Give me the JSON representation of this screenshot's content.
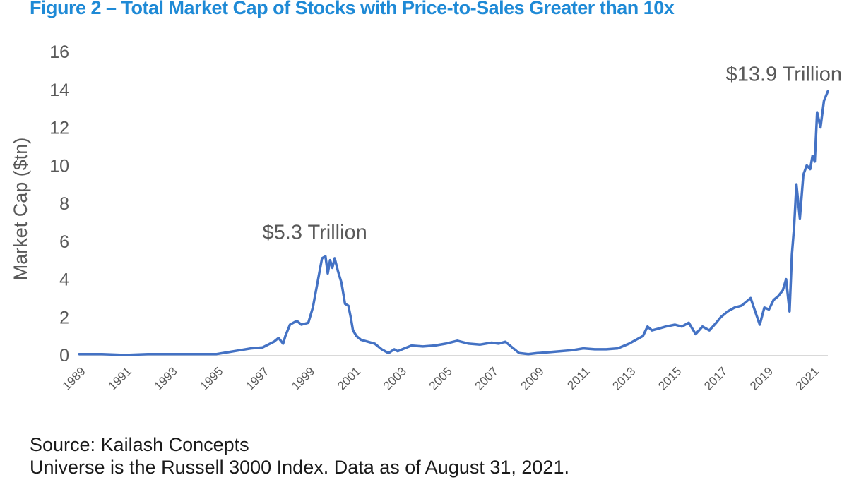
{
  "figure": {
    "title": "Figure 2 – Total Market Cap of Stocks with Price-to-Sales Greater than 10x",
    "source": "Source: Kailash Concepts",
    "note": "Universe is the Russell 3000 Index. Data as of August 31, 2021."
  },
  "colors": {
    "title": "#1f8ad6",
    "line": "#4472c4",
    "axis": "#d9d9d9",
    "text": "#595959"
  },
  "chart_data": {
    "type": "line",
    "title": "Figure 2 – Total Market Cap of Stocks with Price-to-Sales Greater than 10x",
    "xlabel": "",
    "ylabel": "Market Cap ($tn)",
    "ylim": [
      0,
      16
    ],
    "yticks": [
      "0",
      "2",
      "4",
      "6",
      "8",
      "10",
      "12",
      "14",
      "16"
    ],
    "xlim": [
      1989,
      2021.67
    ],
    "xticks": [
      "1989",
      "1991",
      "1993",
      "1995",
      "1997",
      "1999",
      "2001",
      "2003",
      "2005",
      "2007",
      "2009",
      "2011",
      "2013",
      "2015",
      "2017",
      "2019",
      "2021"
    ],
    "grid": false,
    "legend": "none",
    "annotations": [
      {
        "text": "$5.3 Trillion",
        "x": 1999.9,
        "y": 5.3
      },
      {
        "text": "$13.9 Trillion",
        "x": 2021.6,
        "y": 13.9
      }
    ],
    "series": [
      {
        "x": [
          1989.0,
          1990.0,
          1991.0,
          1992.0,
          1993.0,
          1994.0,
          1995.0,
          1995.5,
          1996.0,
          1996.5,
          1997.0,
          1997.5,
          1997.7,
          1997.9,
          1998.0,
          1998.2,
          1998.5,
          1998.7,
          1999.0,
          1999.2,
          1999.4,
          1999.6,
          1999.75,
          1999.85,
          1999.95,
          2000.05,
          2000.15,
          2000.3,
          2000.45,
          2000.6,
          2000.75,
          2000.85,
          2000.95,
          2001.1,
          2001.3,
          2001.6,
          2001.9,
          2002.2,
          2002.5,
          2002.75,
          2002.9,
          2003.1,
          2003.5,
          2004.0,
          2004.5,
          2005.0,
          2005.5,
          2006.0,
          2006.5,
          2007.0,
          2007.3,
          2007.6,
          2007.9,
          2008.2,
          2008.6,
          2009.0,
          2009.5,
          2010.0,
          2010.5,
          2011.0,
          2011.5,
          2012.0,
          2012.5,
          2013.0,
          2013.3,
          2013.6,
          2013.8,
          2014.0,
          2014.3,
          2014.6,
          2015.0,
          2015.3,
          2015.6,
          2015.9,
          2016.2,
          2016.5,
          2016.8,
          2017.0,
          2017.3,
          2017.6,
          2017.9,
          2018.1,
          2018.3,
          2018.5,
          2018.7,
          2018.9,
          2019.1,
          2019.3,
          2019.5,
          2019.7,
          2019.85,
          2020.0,
          2020.1,
          2020.2,
          2020.3,
          2020.45,
          2020.6,
          2020.75,
          2020.9,
          2021.0,
          2021.1,
          2021.2,
          2021.35,
          2021.5,
          2021.67
        ],
        "values": [
          0.05,
          0.05,
          0.0,
          0.05,
          0.05,
          0.05,
          0.05,
          0.15,
          0.25,
          0.35,
          0.4,
          0.7,
          0.9,
          0.6,
          1.0,
          1.6,
          1.8,
          1.6,
          1.7,
          2.5,
          3.8,
          5.1,
          5.2,
          4.3,
          5.0,
          4.6,
          5.1,
          4.4,
          3.8,
          2.7,
          2.6,
          2.0,
          1.3,
          1.0,
          0.8,
          0.7,
          0.6,
          0.3,
          0.1,
          0.3,
          0.2,
          0.3,
          0.5,
          0.45,
          0.5,
          0.6,
          0.75,
          0.6,
          0.55,
          0.65,
          0.6,
          0.7,
          0.4,
          0.1,
          0.05,
          0.1,
          0.15,
          0.2,
          0.25,
          0.35,
          0.3,
          0.3,
          0.35,
          0.6,
          0.8,
          1.0,
          1.5,
          1.3,
          1.4,
          1.5,
          1.6,
          1.5,
          1.7,
          1.1,
          1.5,
          1.3,
          1.7,
          2.0,
          2.3,
          2.5,
          2.6,
          2.8,
          3.0,
          2.3,
          1.6,
          2.5,
          2.4,
          2.9,
          3.1,
          3.4,
          4.0,
          2.3,
          5.3,
          6.8,
          9.0,
          7.2,
          9.5,
          10.0,
          9.8,
          10.5,
          10.2,
          12.8,
          12.0,
          13.4,
          13.9
        ]
      }
    ]
  }
}
